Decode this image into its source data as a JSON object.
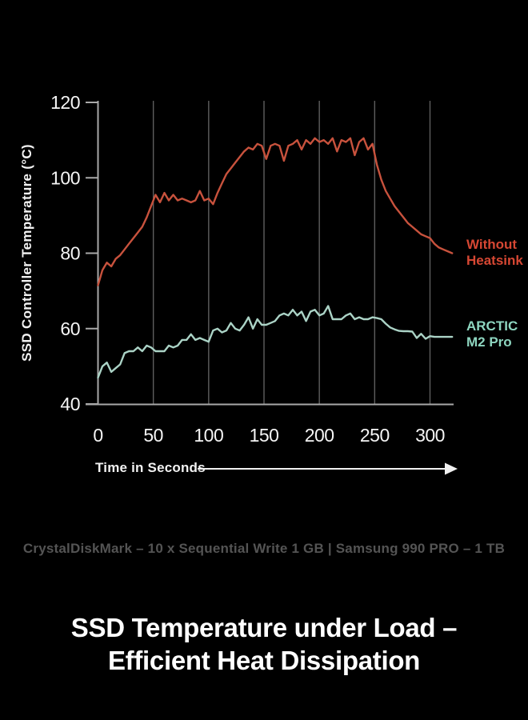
{
  "title": {
    "text": "SSD Temperature under Load –\nEfficient Heat Dissipation"
  },
  "subtitle": {
    "text": "CrystalDiskMark – 10 x Sequential Write 1 GB | Samsung 990 PRO – 1 TB"
  },
  "axes": {
    "y_title": "SSD Controller Temperature (°C)",
    "x_title": "Time in Seconds"
  },
  "legend": {
    "without_heatsink": {
      "label": "Without\nHeatsink",
      "color": "#d64733"
    },
    "arctic_m2_pro": {
      "label": "ARCTIC\nM2 Pro",
      "color": "#8ed6c0"
    }
  },
  "colors": {
    "background": "#000000",
    "grid": "#5e5e5e",
    "axis": "#a9a9a9",
    "tick_label": "#f5f5f5",
    "arrow": "#f0f0f0",
    "red_line": "#c8523d",
    "teal_line": "#abd3c6",
    "subtitle_text": "#545454"
  },
  "chart_data": {
    "type": "line",
    "title": "SSD Temperature under Load – Efficient Heat Dissipation",
    "xlabel": "Time in Seconds",
    "ylabel": "SSD Controller Temperature (°C)",
    "x_ticks": [
      0,
      50,
      100,
      150,
      200,
      250,
      300
    ],
    "y_ticks": [
      120,
      100,
      80,
      60,
      40
    ],
    "xlim": [
      0,
      320
    ],
    "ylim": [
      40,
      120
    ],
    "grid": "vertical-only",
    "legend_position": "right-of-lines",
    "x_start": 0,
    "x_step": 4,
    "series": [
      {
        "name": "Without Heatsink",
        "color": "#c8523d",
        "values": [
          71.5,
          75.5,
          77.5,
          76.5,
          78.5,
          79.5,
          81,
          82.5,
          84,
          85.5,
          87,
          89.5,
          92.5,
          95.5,
          93.5,
          96,
          94,
          95.5,
          94,
          94.5,
          94,
          93.5,
          94,
          96.5,
          94,
          94.5,
          93,
          96,
          98.5,
          101,
          102.5,
          104,
          105.5,
          107,
          108,
          107.5,
          109,
          108.5,
          105,
          108.5,
          109,
          108.5,
          104.5,
          108.5,
          109,
          110,
          107.5,
          110,
          109,
          110.5,
          109.5,
          110,
          109,
          110.5,
          107,
          110,
          109.5,
          110.5,
          106,
          109.5,
          110.5,
          107.5,
          109,
          103.5,
          99.5,
          96.5,
          94.5,
          92.5,
          91,
          89.5,
          88,
          87,
          86,
          85,
          84.5,
          84,
          82.5,
          81.5,
          81,
          80.5,
          80
        ]
      },
      {
        "name": "ARCTIC M2 Pro",
        "color": "#abd3c6",
        "values": [
          47,
          50,
          51,
          48.5,
          49.5,
          50.5,
          53.5,
          54,
          54,
          55,
          54,
          55.5,
          55,
          54,
          54,
          54,
          55.5,
          55,
          55.5,
          57,
          57,
          58.5,
          57,
          57.5,
          57,
          56.5,
          59.5,
          60,
          59,
          59.5,
          61.5,
          60,
          59.5,
          61,
          63,
          60,
          62.5,
          61,
          61,
          61.5,
          62,
          63.5,
          64,
          63.5,
          65,
          63.5,
          64.5,
          62,
          64.5,
          65,
          63.5,
          64,
          66,
          62.5,
          62.5,
          62.5,
          63.5,
          64,
          62.5,
          63,
          62.5,
          62.5,
          63,
          62.8,
          62.5,
          61.3,
          60.3,
          59.8,
          59.4,
          59.3,
          59.3,
          59.2,
          57.5,
          58.6,
          57.3,
          58,
          57.8,
          57.8,
          57.8,
          57.8,
          57.8
        ]
      }
    ]
  }
}
